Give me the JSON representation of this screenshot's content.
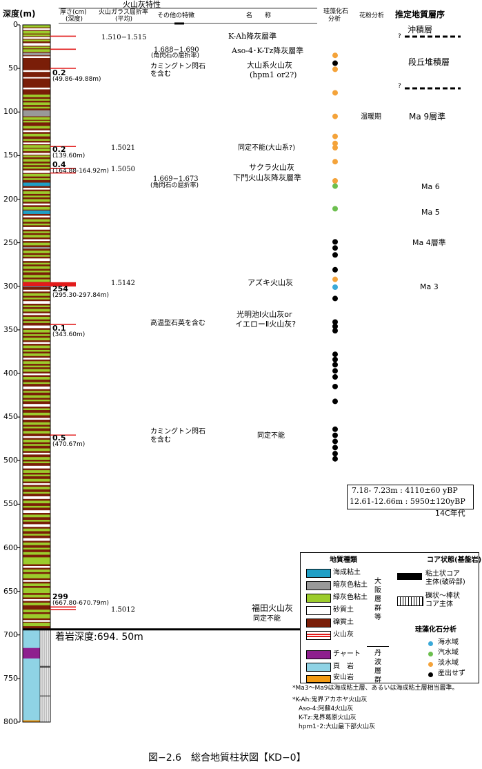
{
  "header": {
    "depth_axis_label": "深度(m)",
    "ash_props_title": "火山灰特性",
    "col_thickness": "厚さ(cm)",
    "col_thickness_sub": "(深度)",
    "col_glass": "火山ガラス屈折率",
    "col_glass_sub": "(平均)",
    "col_other": "その他の特徴",
    "col_name": "名　　称",
    "col_diatom": "珪藻化石",
    "col_diatom2": "分析",
    "col_pollen": "花粉分析",
    "col_strata": "推定地質層序"
  },
  "depth_ticks": [
    "0",
    "50",
    "100",
    "150",
    "200",
    "250",
    "300",
    "350",
    "400",
    "450",
    "500",
    "550",
    "600",
    "650",
    "700",
    "750",
    "800"
  ],
  "ash_layers": [
    {
      "thickness": "",
      "glass": "1.510−1.515",
      "feature": "",
      "name": "K-Ah降灰層準"
    },
    {
      "thickness": "",
      "glass": "",
      "feature": "1.688−1.690",
      "feature2": "(角閃石の屈折率)",
      "name": "Aso-4･K-Tz降灰層準"
    },
    {
      "thickness": "0.2",
      "depth": "(49.86-49.88m)",
      "glass": "",
      "feature": "カミングトン閃石",
      "feature2": "を含む",
      "name": "大山系火山灰",
      "name2": "(hpm1 or2?)"
    },
    {
      "thickness": "0.2",
      "depth": "(139.60m)",
      "glass": "1.5021",
      "feature": "",
      "name": "同定不能(大山系?)"
    },
    {
      "thickness": "0.4",
      "depth": "(164.88-164.92m)",
      "glass": "1.5050",
      "feature": "1.669−1.673",
      "feature2": "(角閃石の屈折率)",
      "name": "サクラ火山灰",
      "name2": "下門火山灰降灰層準"
    },
    {
      "thickness": "254",
      "depth": "(295.30-297.84m)",
      "glass": "1.5142",
      "feature": "",
      "name": "アズキ火山灰"
    },
    {
      "thickness": "0.1",
      "depth": "(343.60m)",
      "glass": "",
      "feature": "高温型石英を含む",
      "name": "光明池Ⅰ火山灰or",
      "name2": "イエローⅡ火山灰?"
    },
    {
      "thickness": "0.5",
      "depth": "(470.67m)",
      "glass": "",
      "feature": "カミングトン閃石",
      "feature2": "を含む",
      "name": "同定不能"
    },
    {
      "thickness": "299",
      "depth": "(667.80-670.79m)",
      "glass": "1.5012",
      "feature": "",
      "name": "福田火山灰",
      "name2": "同定不能"
    }
  ],
  "bedrock_label": "着岩深度:694. 50m",
  "pollen_text": "温暖期",
  "strata": [
    "沖積層",
    "段丘堆積層",
    "Ma 9層準",
    "Ma 6",
    "Ma 5",
    "Ma 4層準",
    "Ma 3"
  ],
  "question_marks": [
    "?",
    "?"
  ],
  "dating": {
    "line1": "7.18- 7.23m : 4110±60 yBP",
    "line2": "12.61-12.66m : 5950±120yBP",
    "label": "14C年代"
  },
  "legend": {
    "title": "地質種類",
    "items": [
      "海成粘土",
      "暗灰色粘土",
      "緑灰色粘土",
      "砂質土",
      "礫質土",
      "火山灰",
      "チャート",
      "頁　岩",
      "安山岩"
    ],
    "group1": "大阪層群等",
    "group2": "丹波層群",
    "core_title": "コア状態(基盤岩)",
    "core1": "粘土状コア",
    "core1b": "主体(破砕部)",
    "core2": "礫状〜棒状",
    "core2b": "コア主体",
    "diatom_title": "珪藻化石分析",
    "diatom_items": [
      "海水域",
      "汽水域",
      "淡水域",
      "産出せず"
    ]
  },
  "notes": [
    "*Ma3〜Ma9は海成粘土層、あるいは海成粘土層相当層準。",
    "*K-Ah:鬼界アカホヤ火山灰",
    "Aso-4:阿蘇4火山灰",
    "K-Tz:鬼界葛原火山灰",
    "hpm1･2:大山最下部火山灰"
  ],
  "caption": "図−2.6　総合地質柱状図【KD−0】",
  "colors": {
    "marine_clay": "#1f9fc6",
    "dark_gray_clay": "#999999",
    "green_gray_clay": "#9ccc2c",
    "sandy": "#ffffff",
    "gravel": "#7a1e08",
    "ash": "#e21b1b",
    "chert": "#8e1f8e",
    "shale": "#8fd3e5",
    "andesite": "#f39a12",
    "dot_marine": "#3aa9d8",
    "dot_brackish": "#6cbf4e",
    "dot_fresh": "#f4a33a",
    "dot_none": "#000000"
  },
  "diatom_points": [
    {
      "depth": 35,
      "kind": "fresh"
    },
    {
      "depth": 44,
      "kind": "none"
    },
    {
      "depth": 51,
      "kind": "fresh"
    },
    {
      "depth": 78,
      "kind": "fresh"
    },
    {
      "depth": 105,
      "kind": "fresh"
    },
    {
      "depth": 128,
      "kind": "fresh"
    },
    {
      "depth": 136,
      "kind": "fresh"
    },
    {
      "depth": 141,
      "kind": "fresh"
    },
    {
      "depth": 157,
      "kind": "fresh"
    },
    {
      "depth": 179,
      "kind": "fresh"
    },
    {
      "depth": 185,
      "kind": "brackish"
    },
    {
      "depth": 211,
      "kind": "brackish"
    },
    {
      "depth": 249,
      "kind": "none"
    },
    {
      "depth": 256,
      "kind": "none"
    },
    {
      "depth": 264,
      "kind": "none"
    },
    {
      "depth": 281,
      "kind": "none"
    },
    {
      "depth": 292,
      "kind": "fresh"
    },
    {
      "depth": 301,
      "kind": "marine"
    },
    {
      "depth": 314,
      "kind": "none"
    },
    {
      "depth": 341,
      "kind": "none"
    },
    {
      "depth": 346,
      "kind": "none"
    },
    {
      "depth": 351,
      "kind": "none"
    },
    {
      "depth": 378,
      "kind": "none"
    },
    {
      "depth": 384,
      "kind": "none"
    },
    {
      "depth": 390,
      "kind": "none"
    },
    {
      "depth": 397,
      "kind": "none"
    },
    {
      "depth": 404,
      "kind": "none"
    },
    {
      "depth": 415,
      "kind": "none"
    },
    {
      "depth": 432,
      "kind": "none"
    },
    {
      "depth": 464,
      "kind": "none"
    },
    {
      "depth": 471,
      "kind": "none"
    },
    {
      "depth": 478,
      "kind": "none"
    },
    {
      "depth": 485,
      "kind": "none"
    },
    {
      "depth": 492,
      "kind": "none"
    },
    {
      "depth": 498,
      "kind": "none"
    }
  ]
}
